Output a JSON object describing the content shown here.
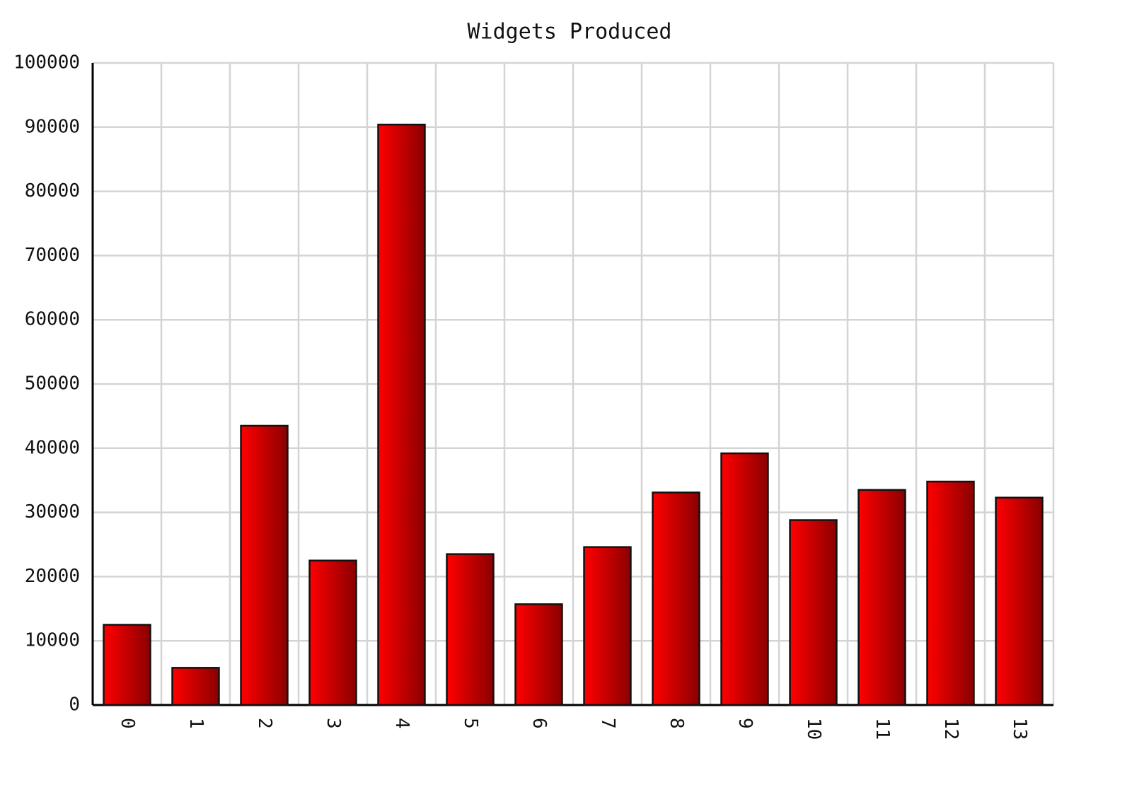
{
  "chart_data": {
    "type": "bar",
    "title": "Widgets Produced",
    "categories": [
      "0",
      "1",
      "2",
      "3",
      "4",
      "5",
      "6",
      "7",
      "8",
      "9",
      "10",
      "11",
      "12",
      "13"
    ],
    "values": [
      12500,
      5800,
      43500,
      22500,
      90400,
      23500,
      15700,
      24600,
      33100,
      39200,
      28800,
      33500,
      34800,
      32300
    ],
    "color": "#e00000",
    "ylim": [
      0,
      100000
    ],
    "yticks": [
      0,
      10000,
      20000,
      30000,
      40000,
      50000,
      60000,
      70000,
      80000,
      90000,
      100000
    ],
    "grid": true
  }
}
